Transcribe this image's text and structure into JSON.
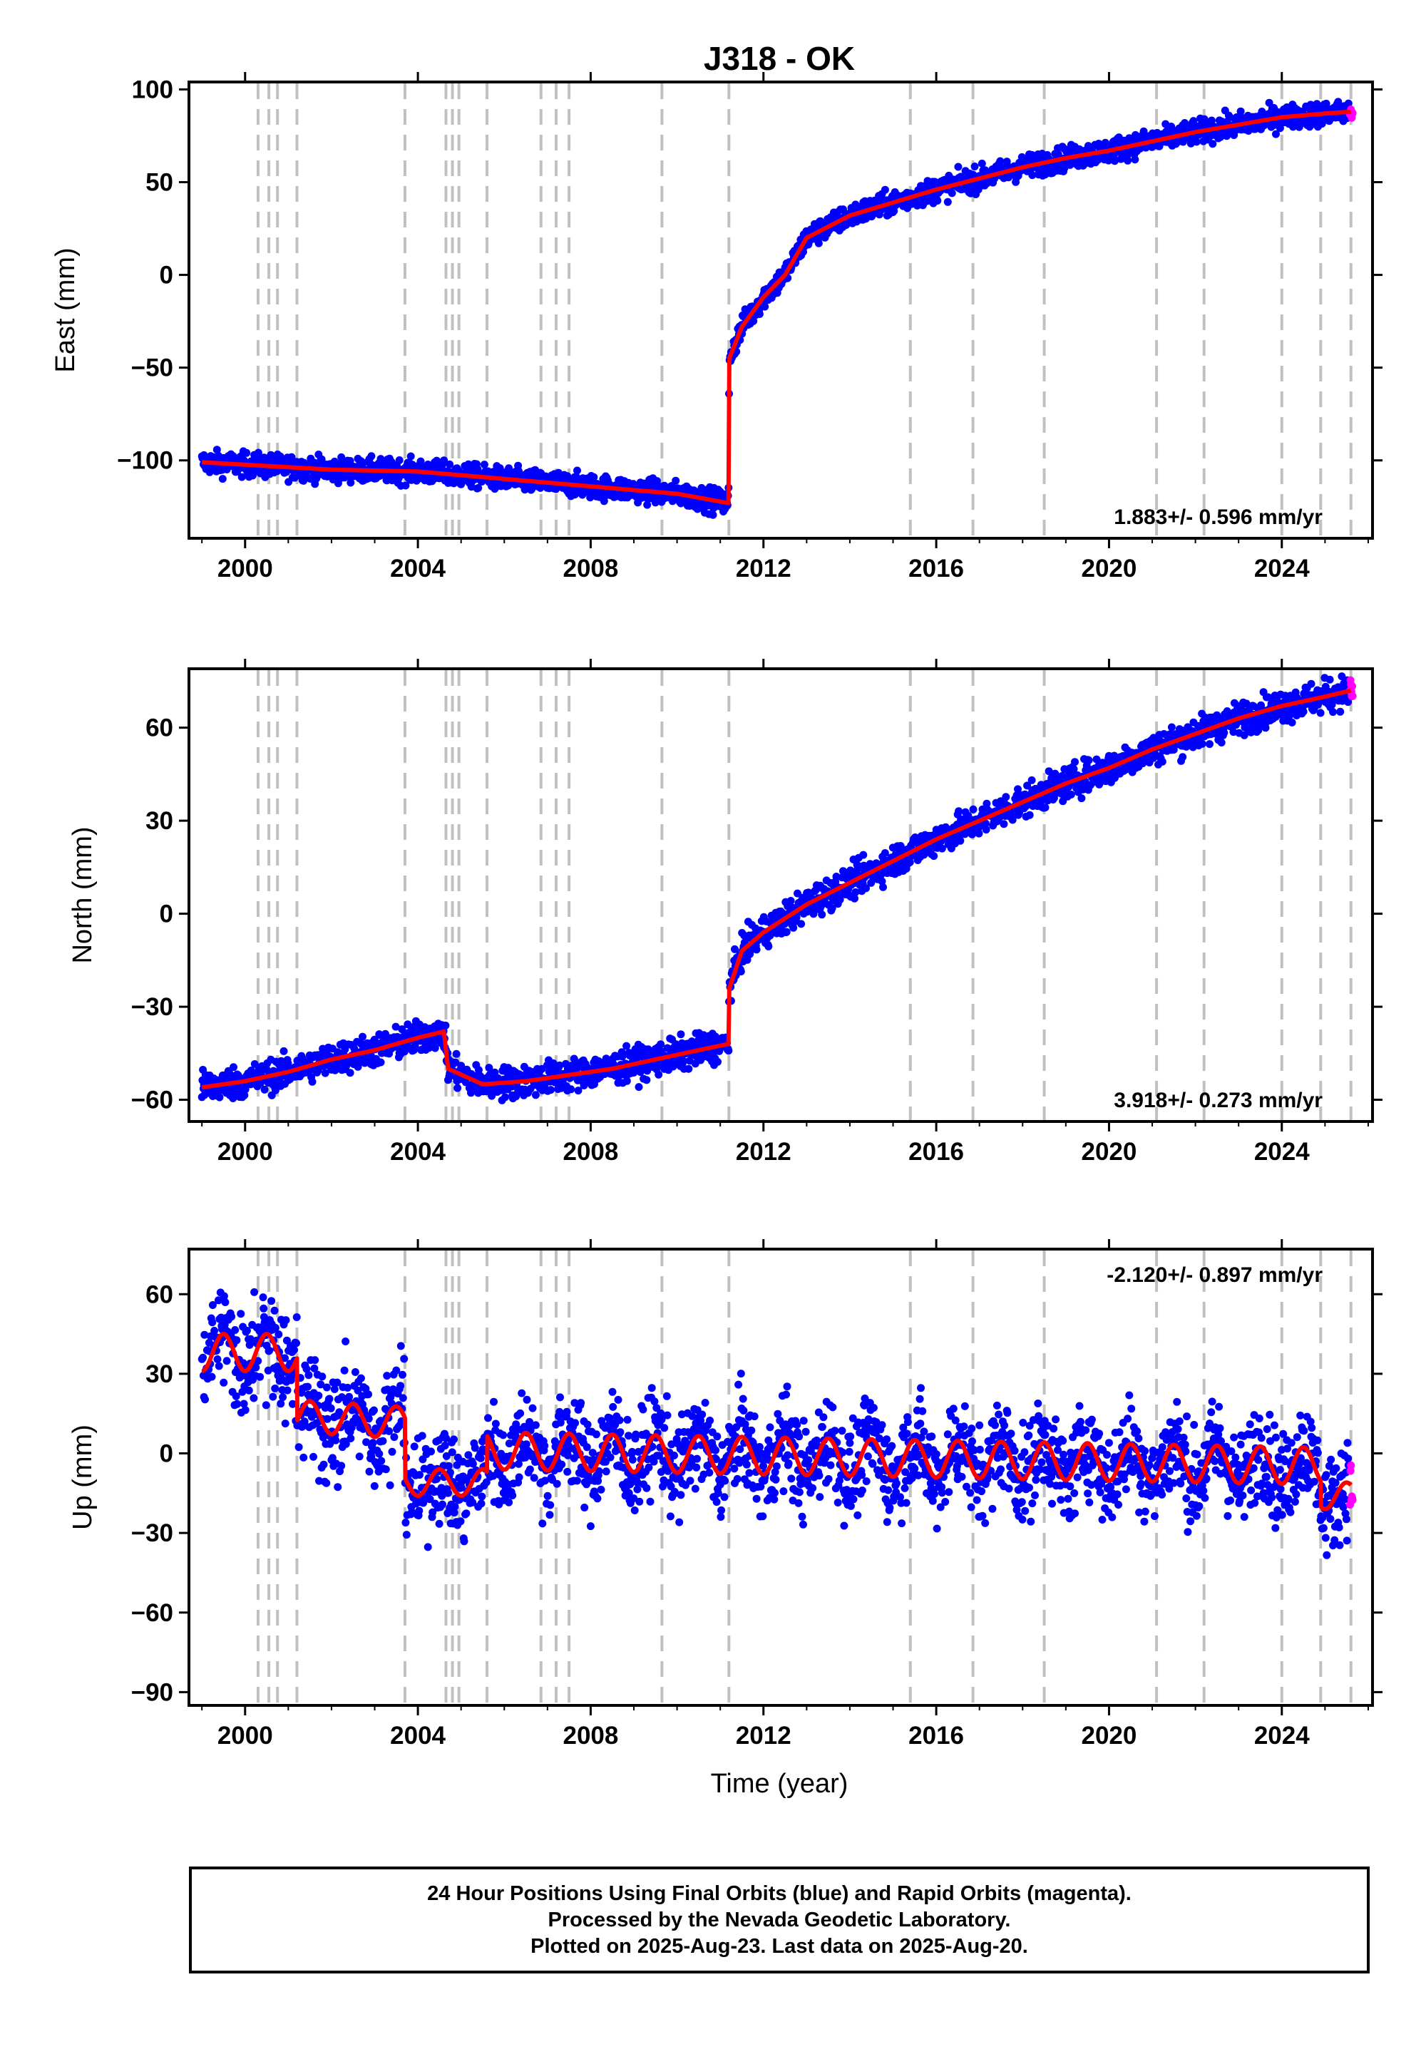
{
  "colors": {
    "final_orbits": "#0000ff",
    "rapid_orbits": "#ff00ff",
    "model_fit": "#ff0000",
    "event_lines": "#c0c0c0"
  },
  "chart_data": {
    "type": "scatter",
    "title": "J318 - OK",
    "xlabel": "Time (year)",
    "xlim": [
      1998.7,
      2026.1
    ],
    "xticks": [
      2000,
      2004,
      2008,
      2012,
      2016,
      2020,
      2024
    ],
    "event_lines": [
      2000.3,
      2000.55,
      2000.75,
      2001.2,
      2003.7,
      2004.65,
      2004.8,
      2004.95,
      2005.6,
      2006.85,
      2007.2,
      2007.5,
      2009.65,
      2011.2,
      2015.4,
      2016.85,
      2018.5,
      2021.1,
      2022.2,
      2024.0,
      2024.9,
      2025.6
    ],
    "panels": [
      {
        "name": "east",
        "ylabel": "East (mm)",
        "ylim": [
          -142,
          104
        ],
        "yticks": [
          -100,
          -50,
          0,
          50,
          100
        ],
        "velocity": "1.883+/- 0.596 mm/yr",
        "velocity_position": "bottom-right",
        "trend_x": [
          1999.0,
          2000.5,
          2002.0,
          2004.0,
          2006.0,
          2008.0,
          2010.0,
          2011.19,
          2011.21,
          2011.5,
          2012.0,
          2012.5,
          2013.0,
          2014.0,
          2015.0,
          2016.0,
          2017.0,
          2018.0,
          2019.0,
          2020.0,
          2021.0,
          2022.0,
          2023.0,
          2024.0,
          2025.0,
          2025.6
        ],
        "trend_y": [
          -101,
          -103,
          -105,
          -106,
          -110,
          -114,
          -118,
          -123,
          -45,
          -28,
          -12,
          0,
          20,
          32,
          39,
          46,
          52,
          58,
          63,
          67,
          72,
          77,
          81,
          85,
          87,
          88
        ]
      },
      {
        "name": "north",
        "ylabel": "North (mm)",
        "ylim": [
          -67,
          79
        ],
        "yticks": [
          -60,
          -30,
          0,
          30,
          60
        ],
        "velocity": "3.918+/- 0.273 mm/yr",
        "velocity_position": "bottom-right",
        "trend_x": [
          1999.0,
          2000.0,
          2001.0,
          2002.0,
          2003.0,
          2004.0,
          2004.6,
          2004.7,
          2005.5,
          2006.5,
          2007.5,
          2008.5,
          2009.5,
          2010.5,
          2011.19,
          2011.21,
          2011.5,
          2012.0,
          2013.0,
          2014.0,
          2015.0,
          2016.0,
          2017.0,
          2018.0,
          2019.0,
          2020.0,
          2021.0,
          2022.0,
          2023.0,
          2024.0,
          2025.0,
          2025.6
        ],
        "trend_y": [
          -56,
          -54,
          -51,
          -47,
          -44,
          -40,
          -38,
          -50,
          -55,
          -54,
          -52,
          -50,
          -47,
          -44,
          -42,
          -24,
          -12,
          -6,
          3,
          10,
          17,
          24,
          30,
          36,
          42,
          47,
          53,
          58,
          63,
          67,
          70,
          72
        ]
      },
      {
        "name": "up",
        "ylabel": "Up (mm)",
        "ylim": [
          -95,
          77
        ],
        "yticks": [
          -90,
          -60,
          -30,
          0,
          30,
          60
        ],
        "velocity": "-2.120+/- 0.897 mm/yr",
        "velocity_position": "top-right",
        "trend_segments": [
          {
            "x0": 1999.0,
            "x1": 2001.2,
            "base": 38,
            "slope": 0,
            "amp": 7
          },
          {
            "x0": 2001.2,
            "x1": 2003.7,
            "base": 14,
            "slope": -1.0,
            "amp": 6
          },
          {
            "x0": 2003.7,
            "x1": 2005.6,
            "base": -11,
            "slope": 0,
            "amp": 5
          },
          {
            "x0": 2005.6,
            "x1": 2024.9,
            "base": 1,
            "slope": -0.3,
            "amp": 7
          },
          {
            "x0": 2024.9,
            "x1": 2025.6,
            "base": -16,
            "slope": 0,
            "amp": 5
          }
        ]
      }
    ],
    "footer": [
      "24 Hour Positions Using Final Orbits (blue) and Rapid Orbits (magenta).",
      "Processed by the Nevada Geodetic Laboratory.",
      "Plotted on 2025-Aug-23. Last data on 2025-Aug-20."
    ]
  }
}
